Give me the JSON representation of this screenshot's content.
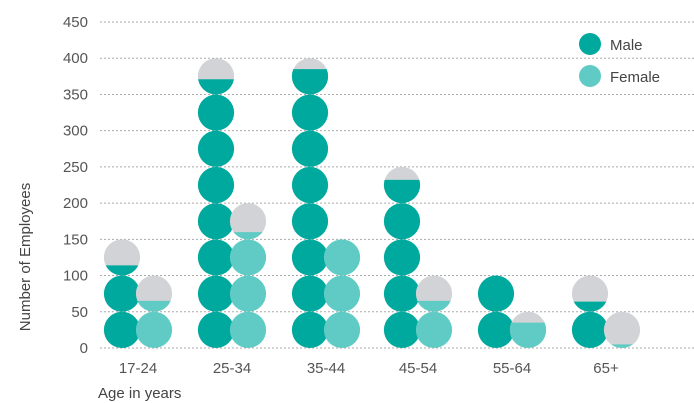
{
  "chart_data": {
    "type": "bar",
    "style": "stacked circles (each full circle = 50 employees)",
    "categories": [
      "17-24",
      "25-34",
      "35-44",
      "45-54",
      "55-64",
      "65+"
    ],
    "series": [
      {
        "name": "Male",
        "values": [
          114,
          371,
          385,
          232,
          100,
          64
        ]
      },
      {
        "name": "Female",
        "values": [
          65,
          160,
          150,
          65,
          35,
          5
        ]
      }
    ],
    "unit_per_circle": 50,
    "ylabel": "Number of Employees",
    "xlabel": "Age in years",
    "ylim": [
      0,
      450
    ],
    "yticks": [
      0,
      50,
      100,
      150,
      200,
      250,
      300,
      350,
      400,
      450
    ],
    "grid": true,
    "legend_position": "top-right",
    "colors": {
      "Male": "#00a99d",
      "Female": "#5fcbc4",
      "empty": "#d1d3d6",
      "grid": "#aaaaaa"
    }
  }
}
